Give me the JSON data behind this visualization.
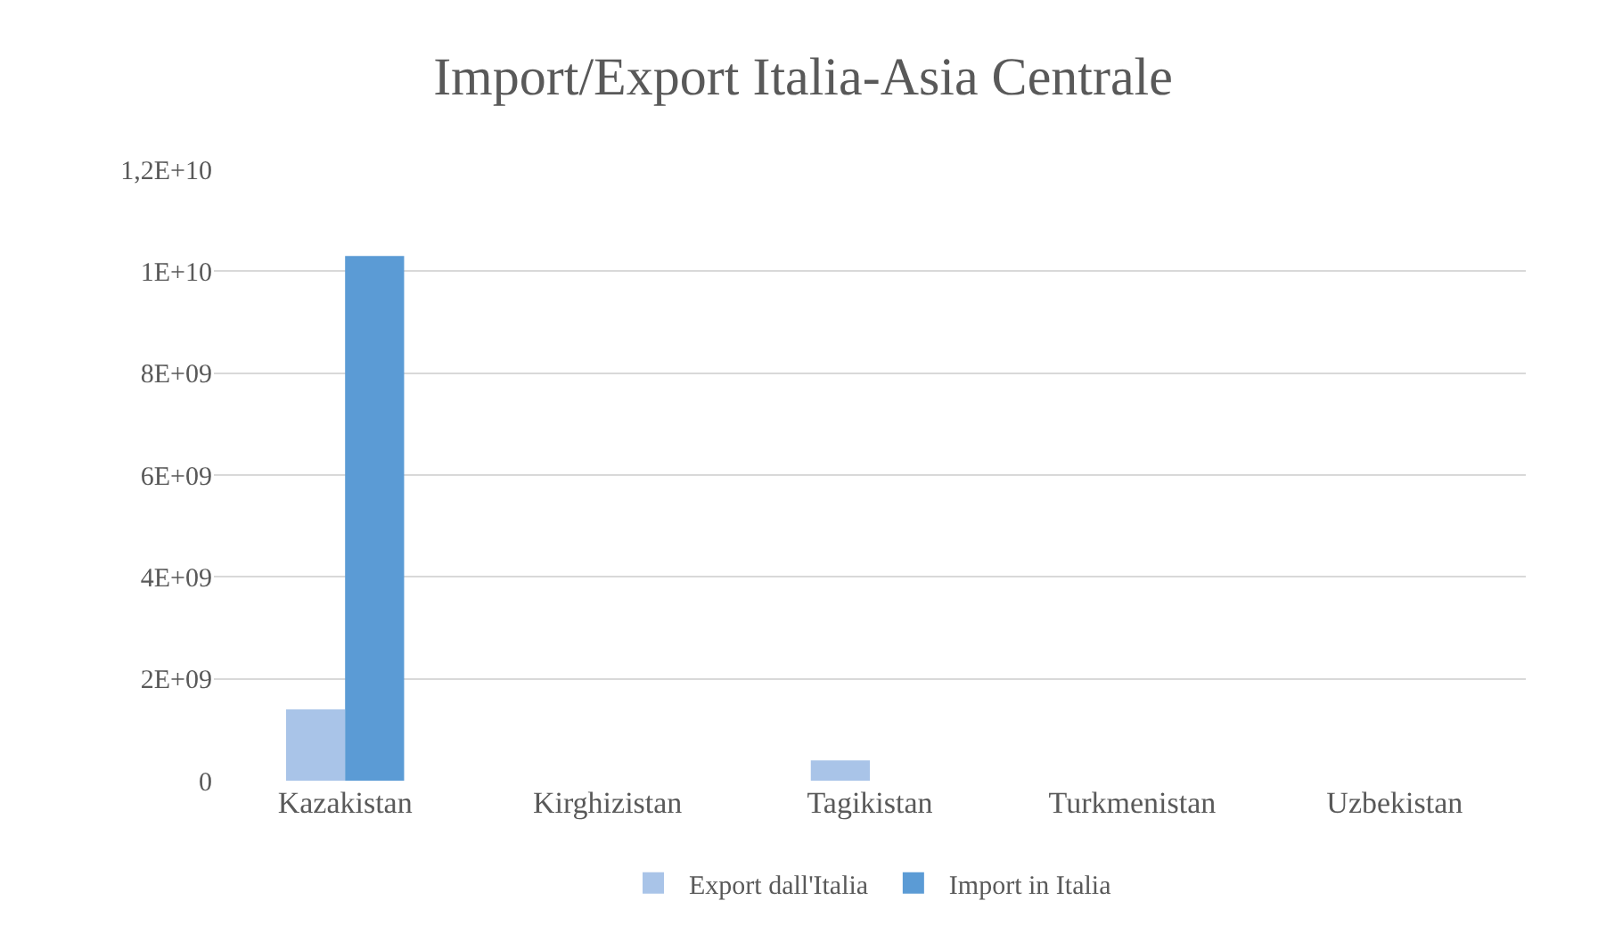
{
  "chart_data": {
    "type": "bar",
    "title": "Import/Export Italia-Asia Centrale",
    "categories": [
      "Kazakistan",
      "Kirghizistan",
      "Tagikistan",
      "Turkmenistan",
      "Uzbekistan"
    ],
    "series": [
      {
        "name": "Export dall'Italia",
        "color": "#a9c4e8",
        "values": [
          1400000000,
          0,
          400000000,
          0,
          0
        ]
      },
      {
        "name": "Import in Italia",
        "color": "#5b9bd5",
        "values": [
          10300000000,
          0,
          0,
          0,
          0
        ]
      }
    ],
    "ylim": [
      0,
      12000000000
    ],
    "yticks": [
      0,
      {
        "value": 2000000000,
        "label": "2E+09"
      },
      {
        "value": 4000000000,
        "label": "4E+09"
      },
      {
        "value": 6000000000,
        "label": "6E+09"
      },
      {
        "value": 8000000000,
        "label": "8E+09"
      },
      {
        "value": 10000000000,
        "label": "1E+10"
      },
      {
        "value": 12000000000,
        "label": "1,2E+10"
      }
    ],
    "grid": "y",
    "legend": "bottom"
  }
}
